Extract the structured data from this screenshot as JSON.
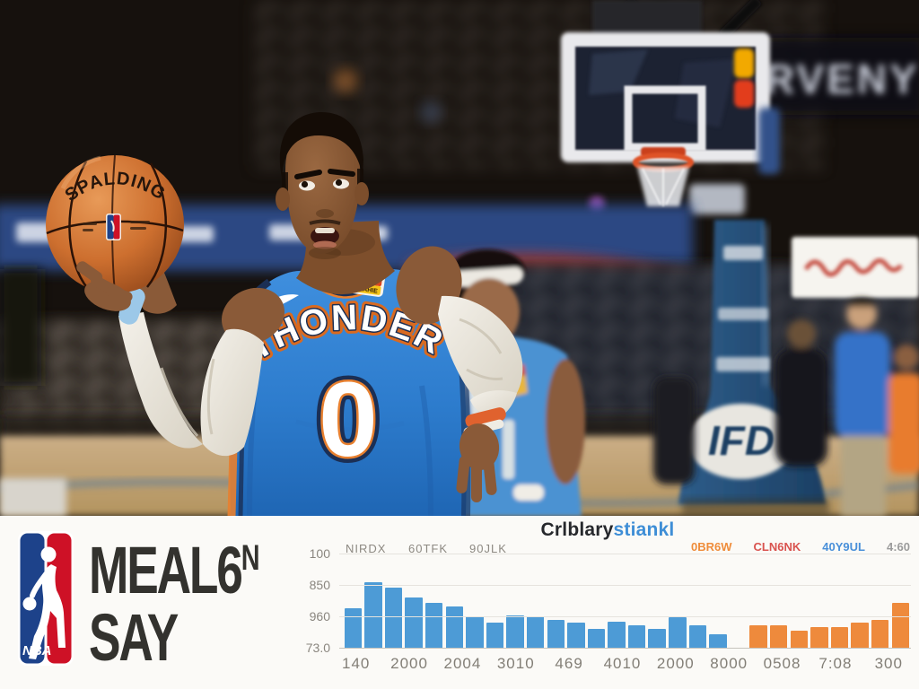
{
  "photo": {
    "ball": {
      "brand_text": "SPALDING"
    },
    "jersey": {
      "team_text": "THONDER",
      "number": "0",
      "patch_text": "TEAHIE"
    },
    "stanchion": {
      "logo_text": "IFD"
    },
    "arena": {
      "banner_text": "RVENY"
    }
  },
  "banner": {
    "nba_logo_text": "NBA",
    "title": {
      "line1_main": "MEAL6",
      "line1_sup": "N",
      "line2": "SAY"
    }
  },
  "chart_data": {
    "type": "bar",
    "title": {
      "dark": "Crlblary",
      "blue": "stiankl"
    },
    "annotations": [
      "NIRDX",
      "60TFK",
      "90JLK"
    ],
    "legend": [
      {
        "label": "0BR6W",
        "color": "#ef8c3a"
      },
      {
        "label": "CLN6NK",
        "color": "#d9534f"
      },
      {
        "label": "40Y9UL",
        "color": "#4a90d9"
      },
      {
        "label": "4:60",
        "color": "#9b9b9b"
      }
    ],
    "y_tick_labels": [
      "100",
      "850",
      "960",
      "73.0"
    ],
    "x_tick_labels": [
      "140",
      "2000",
      "2004",
      "3010",
      "469",
      "4010",
      "2000",
      "8000",
      "0508",
      "7:08",
      "300"
    ],
    "ylim": [
      0,
      100
    ],
    "grid": true,
    "series": [
      {
        "name": "blue",
        "color": "#4d9bd6",
        "values": [
          42,
          70,
          64,
          53,
          48,
          44,
          33,
          27,
          34,
          33,
          30,
          27,
          20,
          28,
          24,
          20,
          32,
          24,
          14
        ]
      },
      {
        "name": "orange",
        "color": "#ee8a3c",
        "values": [
          24,
          24,
          18,
          22,
          22,
          27,
          30,
          48
        ]
      }
    ],
    "gap_slots_between_series": 1
  }
}
